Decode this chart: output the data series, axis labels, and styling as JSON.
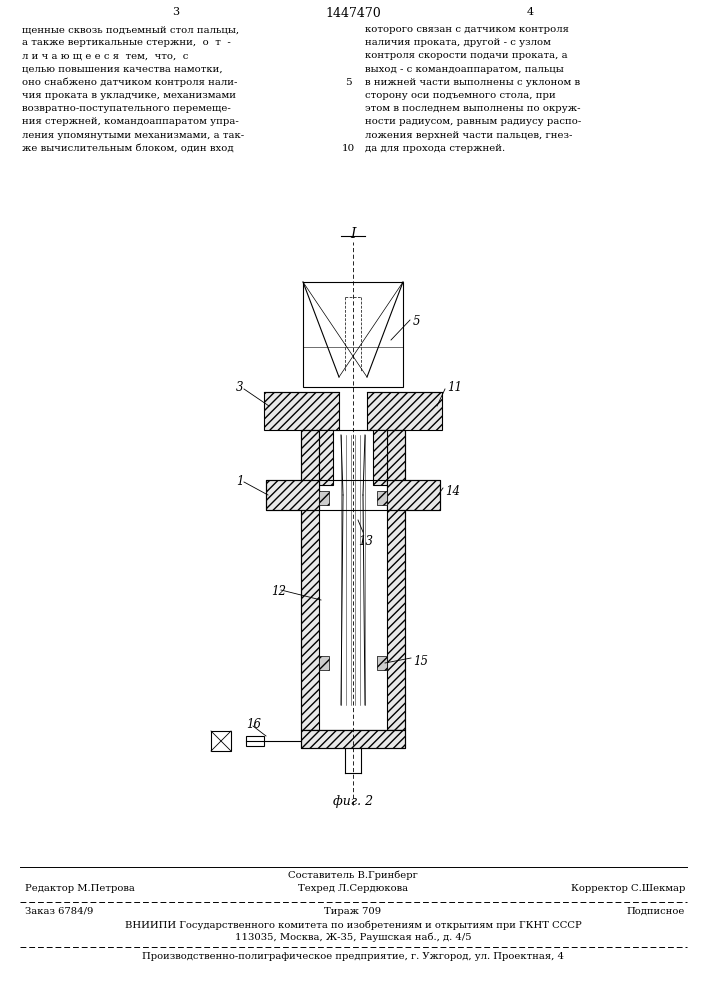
{
  "page_number_left": "3",
  "patent_number": "1447470",
  "page_number_right": "4",
  "bg_color": "#ffffff",
  "text_color": "#000000",
  "left_column_text": [
    "щенные сквозь подъемный стол пальцы,",
    "а также вертикальные стержни,  о  т  -",
    "л и ч а ю щ е е с я  тем,  что,  с",
    "целью повышения качества намотки,",
    "оно снабжено датчиком контроля нали-",
    "чия проката в укладчике, механизмами",
    "возвратно-поступательного перемеще-",
    "ния стержней, командоаппаратом упра-",
    "ления упомянутыми механизмами, а так-",
    "же вычислительным блоком, один вход"
  ],
  "right_column_text": [
    "которого связан с датчиком контроля",
    "наличия проката, другой - с узлом",
    "контроля скорости подачи проката, а",
    "выход - с командоаппаратом, пальцы",
    "в нижней части выполнены с уклоном в",
    "сторону оси подъемного стола, при",
    "этом в последнем выполнены по окруж-",
    "ности радиусом, равным радиусу распо-",
    "ложения верхней части пальцев, гнез-",
    "да для прохода стержней."
  ],
  "line_number_5": "5",
  "line_number_10": "10",
  "fig_label": "фиг. 2",
  "footer_line1_left": "Редактор М.Петрова",
  "footer_line1_center1": "Составитель В.Гринберг",
  "footer_line1_center2": "Техред Л.Сердюкова",
  "footer_line1_right": "Корректор С.Шекмар",
  "footer_line2_col1": "Заказ 6784/9",
  "footer_line2_col2": "Тираж 709",
  "footer_line2_col3": "Подписное",
  "footer_line3": "ВНИИПИ Государственного комитета по изобретениям и открытиям при ГКНТ СССР",
  "footer_line4": "113035, Москва, Ж-35, Раушская наб., д. 4/5",
  "footer_line5": "Производственно-полиграфическое предприятие, г. Ужгород, ул. Проектная, 4"
}
